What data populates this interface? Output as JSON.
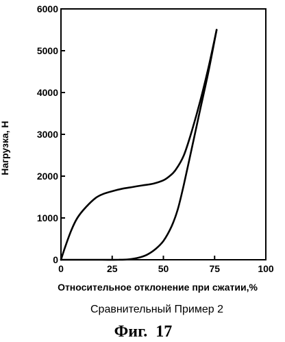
{
  "chart_data": {
    "type": "line",
    "xlabel": "Относительное отклонение при сжатии,%",
    "ylabel": "Нагрузка, Н",
    "xlim": [
      0,
      100
    ],
    "ylim": [
      0,
      6000
    ],
    "x_ticks": [
      "0",
      "25",
      "50",
      "75",
      "100"
    ],
    "y_ticks": [
      "0",
      "1000",
      "2000",
      "3000",
      "4000",
      "5000",
      "6000"
    ],
    "series": [
      {
        "x": [
          0,
          2,
          5,
          8,
          12,
          17,
          21,
          25,
          30,
          35,
          40,
          45,
          50,
          53,
          56,
          60,
          64,
          68,
          72,
          76
        ],
        "y": [
          0,
          300,
          700,
          1000,
          1250,
          1480,
          1580,
          1640,
          1700,
          1740,
          1780,
          1820,
          1900,
          2000,
          2150,
          2500,
          3100,
          3800,
          4600,
          5500
        ]
      },
      {
        "x": [
          0,
          10,
          20,
          28,
          33,
          38,
          42,
          46,
          50,
          54,
          57,
          60,
          64,
          68,
          72,
          76
        ],
        "y": [
          0,
          0,
          0,
          0,
          10,
          50,
          120,
          250,
          450,
          800,
          1200,
          1800,
          2700,
          3600,
          4500,
          5500
        ]
      }
    ],
    "grid": false,
    "legend": false
  },
  "caption": "Сравнительный Пример 2",
  "figure_label": "Фиг.  17"
}
